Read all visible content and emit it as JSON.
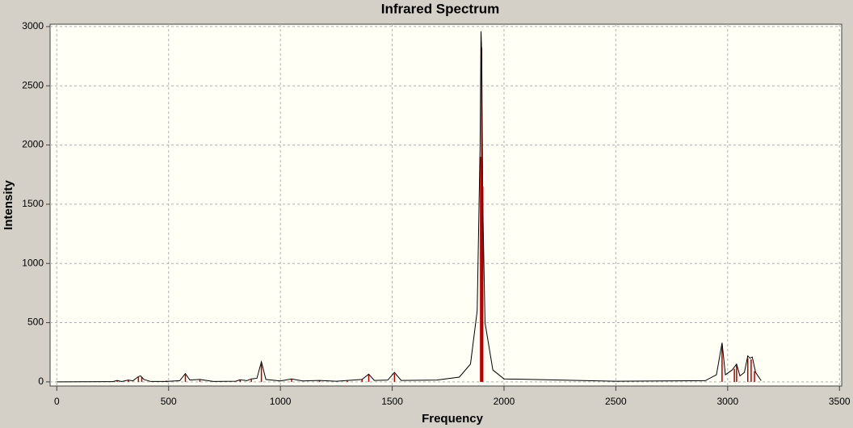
{
  "chart_data": {
    "type": "line",
    "title": "Infrared Spectrum",
    "x_label": "Frequency",
    "y_label": "Intensity",
    "xlim": [
      -30,
      3510
    ],
    "ylim": [
      -35,
      3020
    ],
    "xticks": [
      0,
      500,
      1000,
      1500,
      2000,
      2500,
      3000,
      3500
    ],
    "yticks": [
      0,
      500,
      1000,
      1500,
      2000,
      2500,
      3000
    ],
    "grid": true,
    "series": [
      {
        "mark": "stem",
        "color": "#b00000",
        "x": [
          270,
          320,
          365,
          380,
          490,
          575,
          640,
          820,
          870,
          915,
          1050,
          1175,
          1300,
          1365,
          1395,
          1510,
          1895,
          1900,
          1905,
          2975,
          3030,
          3040,
          3090,
          3105,
          3120
        ],
        "values": [
          10,
          15,
          40,
          40,
          10,
          60,
          15,
          15,
          20,
          150,
          20,
          10,
          8,
          20,
          60,
          70,
          1900,
          2820,
          1650,
          300,
          110,
          140,
          200,
          190,
          90
        ]
      },
      {
        "mark": "line",
        "color": "#000000",
        "x": [
          0,
          250,
          270,
          290,
          320,
          340,
          365,
          375,
          390,
          420,
          490,
          550,
          575,
          595,
          640,
          700,
          800,
          820,
          850,
          870,
          895,
          915,
          935,
          1000,
          1050,
          1100,
          1175,
          1250,
          1365,
          1395,
          1420,
          1480,
          1510,
          1540,
          1700,
          1800,
          1850,
          1880,
          1893,
          1897,
          1900,
          1905,
          1915,
          1950,
          2000,
          2500,
          2900,
          2950,
          2975,
          2990,
          3020,
          3040,
          3055,
          3075,
          3090,
          3100,
          3110,
          3125,
          3150
        ],
        "values": [
          0,
          2,
          12,
          3,
          15,
          8,
          45,
          50,
          20,
          3,
          3,
          10,
          70,
          15,
          20,
          3,
          5,
          18,
          10,
          25,
          30,
          170,
          20,
          8,
          25,
          8,
          12,
          5,
          20,
          65,
          12,
          15,
          80,
          12,
          15,
          40,
          150,
          600,
          2000,
          2960,
          2800,
          1500,
          500,
          100,
          25,
          5,
          10,
          60,
          330,
          60,
          100,
          150,
          50,
          80,
          220,
          200,
          210,
          80,
          10
        ]
      }
    ]
  }
}
